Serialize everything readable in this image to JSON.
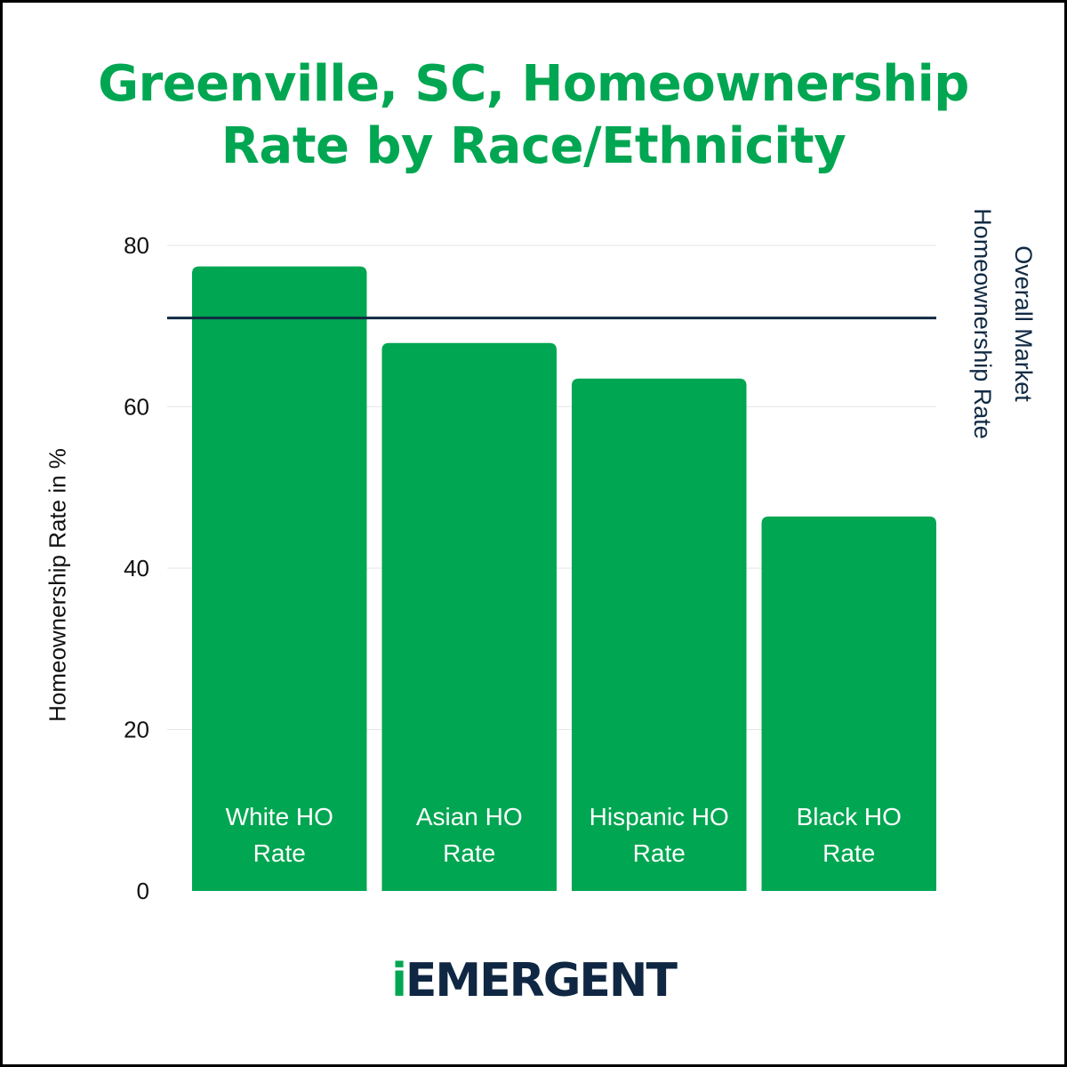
{
  "chart_data": {
    "type": "bar",
    "title": "Greenville, SC, Homeownership Rate by Race/Ethnicity",
    "ylabel": "Homeownership Rate in %",
    "xlabel": "",
    "ylim": [
      0,
      80
    ],
    "yticks": [
      0,
      20,
      40,
      60,
      80
    ],
    "grid": true,
    "categories": [
      "White HO Rate",
      "Asian HO Rate",
      "Hispanic HO Rate",
      "Black HO Rate"
    ],
    "category_lines": [
      [
        "White HO",
        "Rate"
      ],
      [
        "Asian HO",
        "Rate"
      ],
      [
        "Hispanic HO",
        "Rate"
      ],
      [
        "Black HO",
        "Rate"
      ]
    ],
    "values": [
      77.4,
      67.9,
      63.5,
      46.4
    ],
    "bar_color": "#00a651",
    "reference_line": {
      "value": 71,
      "label_lines": [
        "Overall Market",
        "Homeownership Rate"
      ],
      "color": "#102a43"
    }
  },
  "logo": {
    "accent": "i",
    "text": "EMERGENT",
    "accent_color": "#00a651",
    "text_color": "#0f2742"
  }
}
